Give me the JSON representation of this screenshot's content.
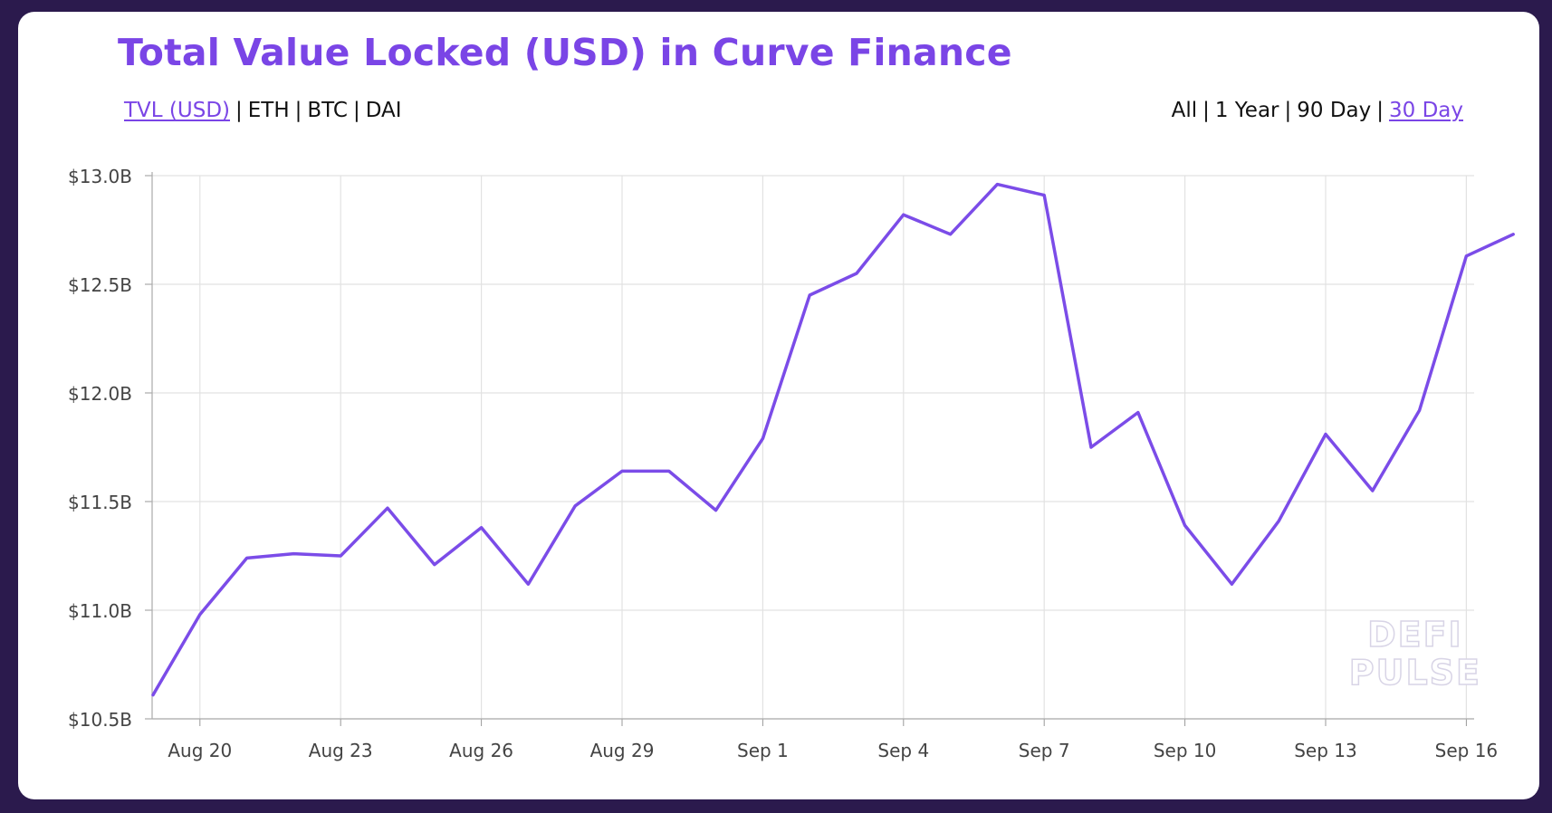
{
  "title": "Total Value Locked (USD) in Curve Finance",
  "metric_tabs": [
    {
      "label": "TVL (USD)",
      "active": true
    },
    {
      "label": "ETH",
      "active": false
    },
    {
      "label": "BTC",
      "active": false
    },
    {
      "label": "DAI",
      "active": false
    }
  ],
  "range_tabs": [
    {
      "label": "All",
      "active": false
    },
    {
      "label": "1 Year",
      "active": false
    },
    {
      "label": "90 Day",
      "active": false
    },
    {
      "label": "30 Day",
      "active": true
    }
  ],
  "separator": "|",
  "watermark": {
    "line1": "DEFI",
    "line2": "PULSE"
  },
  "colors": {
    "accent": "#7a45e6",
    "line": "#7b4ce8",
    "grid": "#e2e2e2",
    "background": "#2b1a4d"
  },
  "chart_data": {
    "type": "line",
    "x": [
      "2020-08-19",
      "2020-08-20",
      "2020-08-21",
      "2020-08-22",
      "2020-08-23",
      "2020-08-24",
      "2020-08-25",
      "2020-08-26",
      "2020-08-27",
      "2020-08-28",
      "2020-08-29",
      "2020-08-30",
      "2020-08-31",
      "2020-09-01",
      "2020-09-02",
      "2020-09-03",
      "2020-09-04",
      "2020-09-05",
      "2020-09-06",
      "2020-09-07",
      "2020-09-08",
      "2020-09-09",
      "2020-09-10",
      "2020-09-11",
      "2020-09-12",
      "2020-09-13",
      "2020-09-14",
      "2020-09-15",
      "2020-09-16",
      "2020-09-17"
    ],
    "series": [
      {
        "values": [
          10.61,
          10.98,
          11.24,
          11.26,
          11.25,
          11.47,
          11.21,
          11.38,
          11.12,
          11.48,
          11.64,
          11.64,
          11.46,
          11.79,
          12.45,
          12.55,
          12.82,
          12.73,
          12.96,
          12.91,
          11.75,
          11.91,
          11.39,
          11.12,
          11.41,
          11.81,
          11.55,
          11.92,
          12.63,
          12.73
        ]
      }
    ],
    "x_ticks": [
      "Aug 20",
      "Aug 23",
      "Aug 26",
      "Aug 29",
      "Sep 1",
      "Sep 4",
      "Sep 7",
      "Sep 10",
      "Sep 13",
      "Sep 16"
    ],
    "y_ticks": [
      "$10.5B",
      "$11.0B",
      "$11.5B",
      "$12.0B",
      "$12.5B",
      "$13.0B"
    ],
    "y_tick_values": [
      10.5,
      11.0,
      11.5,
      12.0,
      12.5,
      13.0
    ],
    "ylim": [
      10.5,
      13.0
    ],
    "y_unit": "billion USD",
    "grid": true,
    "legend": "none"
  }
}
